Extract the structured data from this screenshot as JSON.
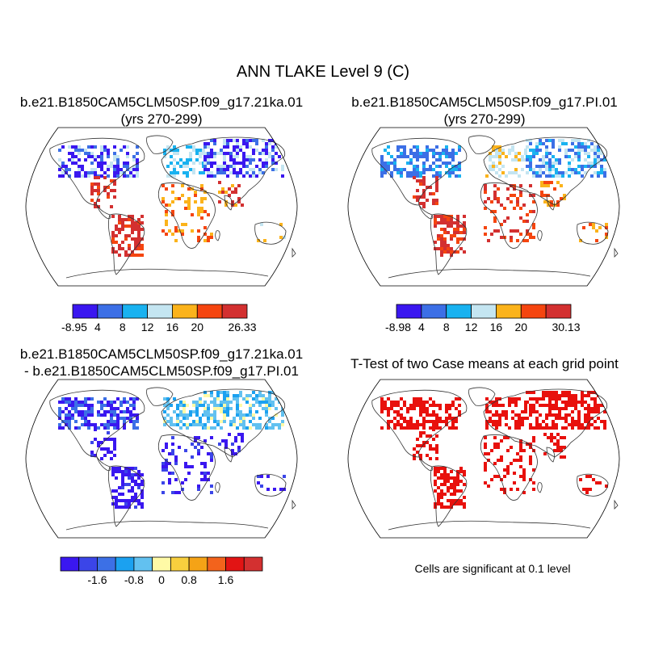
{
  "figure": {
    "title": "ANN TLAKE Level 9 (C)",
    "note": "Cells are significant at 0.1 level"
  },
  "panels": [
    {
      "id": "case1",
      "title_line1": "b.e21.B1850CAM5CLM50SP.f09_g17.21ka.01",
      "title_line2": "(yrs 270-299)",
      "colorbar": {
        "colors": [
          "#3a17f0",
          "#3c6fe6",
          "#19b2f0",
          "#c4e5f1",
          "#fbb31b",
          "#f5450f",
          "#d33030"
        ],
        "labels": [
          "-8.95",
          "4",
          "8",
          "12",
          "16",
          "20",
          "26.33"
        ]
      }
    },
    {
      "id": "case2",
      "title_line1": "b.e21.B1850CAM5CLM50SP.f09_g17.PI.01",
      "title_line2": "(yrs 270-299)",
      "colorbar": {
        "colors": [
          "#3a17f0",
          "#3c6fe6",
          "#19b2f0",
          "#c4e5f1",
          "#fbb31b",
          "#f5450f",
          "#d33030"
        ],
        "labels": [
          "-8.98",
          "4",
          "8",
          "12",
          "16",
          "20",
          "30.13"
        ]
      }
    },
    {
      "id": "difference",
      "title_line1": "b.e21.B1850CAM5CLM50SP.f09_g17.21ka.01",
      "title_line2": "- b.e21.B1850CAM5CLM50SP.f09_g17.PI.01",
      "colorbar": {
        "colors": [
          "#3a17f0",
          "#3b45e8",
          "#3c70e6",
          "#1ba1f0",
          "#62c1f0",
          "#fffaa6",
          "#f8cf3e",
          "#f5a316",
          "#f3631c",
          "#e21414",
          "#d33030"
        ],
        "labels": [
          "-1.6",
          "-0.8",
          "0",
          "0.8",
          "1.6"
        ]
      }
    },
    {
      "id": "ttest",
      "title_line1": "T-Test of two Case means at each grid point",
      "title_line2": ""
    }
  ]
}
